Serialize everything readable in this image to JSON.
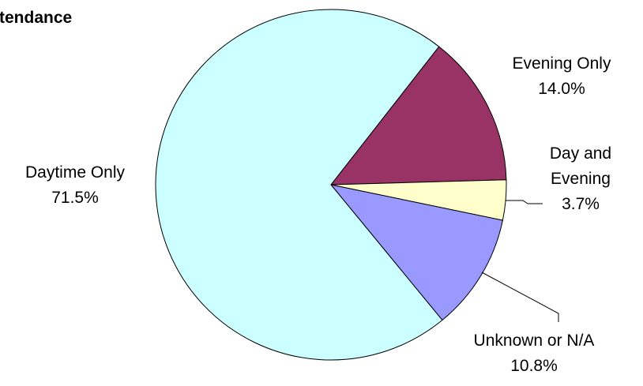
{
  "chart_data": {
    "type": "pie",
    "title": "ttendance",
    "categories": [
      "Evening Only",
      "Day and Evening",
      "Unknown or N/A",
      "Daytime Only"
    ],
    "values": [
      14.0,
      3.7,
      10.8,
      71.5
    ],
    "value_labels": [
      "14.0%",
      "3.7%",
      "10.8%",
      "71.5%"
    ],
    "label_lines": [
      [
        "Evening Only"
      ],
      [
        "Day and",
        "Evening"
      ],
      [
        "Unknown or N/A"
      ],
      [
        "Daytime Only"
      ]
    ],
    "colors": [
      "#993366",
      "#FFFFCC",
      "#9999FF",
      "#CCFFFF"
    ],
    "legend": "none",
    "start_angle_deg": 52,
    "direction": "clockwise"
  }
}
